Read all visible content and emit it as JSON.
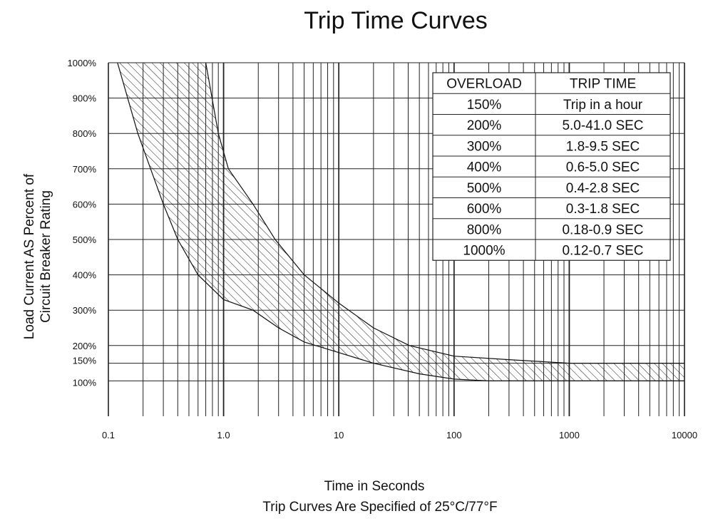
{
  "chart_data": {
    "type": "area",
    "title": "Trip Time Curves",
    "xlabel": "Time in Seconds",
    "subtitle_bottom": "Trip Curves Are Specified of 25°C/77°F",
    "ylabel": [
      "Load Current AS Percent of",
      "Circuit Breaker Rating"
    ],
    "x_scale": "log",
    "xlim": [
      0.1,
      10000
    ],
    "ylim": [
      0,
      1000
    ],
    "x_ticks": [
      {
        "value": 0.1,
        "label": "0.1"
      },
      {
        "value": 1,
        "label": "1.0"
      },
      {
        "value": 10,
        "label": "10"
      },
      {
        "value": 100,
        "label": "100"
      },
      {
        "value": 1000,
        "label": "1000"
      },
      {
        "value": 10000,
        "label": "10000"
      }
    ],
    "y_ticks": [
      {
        "value": 100,
        "label": "100%"
      },
      {
        "value": 150,
        "label": "150%"
      },
      {
        "value": 200,
        "label": "200%"
      },
      {
        "value": 300,
        "label": "300%"
      },
      {
        "value": 400,
        "label": "400%"
      },
      {
        "value": 500,
        "label": "500%"
      },
      {
        "value": 600,
        "label": "600%"
      },
      {
        "value": 700,
        "label": "700%"
      },
      {
        "value": 800,
        "label": "800%"
      },
      {
        "value": 900,
        "label": "900%"
      },
      {
        "value": 1000,
        "label": "1000%"
      }
    ],
    "grid": true,
    "series": [
      {
        "role": "min_trip_curve",
        "points": [
          [
            0.12,
            1000
          ],
          [
            0.18,
            800
          ],
          [
            0.3,
            600
          ],
          [
            0.4,
            500
          ],
          [
            0.6,
            400
          ],
          [
            1.0,
            330
          ],
          [
            1.8,
            300
          ],
          [
            3,
            250
          ],
          [
            5,
            210
          ],
          [
            10,
            180
          ],
          [
            20,
            150
          ],
          [
            50,
            120
          ],
          [
            100,
            105
          ],
          [
            200,
            100
          ],
          [
            10000,
            100
          ]
        ]
      },
      {
        "role": "max_trip_curve",
        "points": [
          [
            0.7,
            1000
          ],
          [
            0.9,
            800
          ],
          [
            1.1,
            700
          ],
          [
            1.8,
            600
          ],
          [
            2.8,
            500
          ],
          [
            5,
            400
          ],
          [
            10,
            320
          ],
          [
            20,
            250
          ],
          [
            41,
            200
          ],
          [
            100,
            170
          ],
          [
            300,
            160
          ],
          [
            1000,
            150
          ],
          [
            10000,
            150
          ]
        ]
      }
    ],
    "fill_pattern": "diagonal-hatch",
    "table": {
      "headers": [
        "OVERLOAD",
        "TRIP TIME"
      ],
      "rows": [
        [
          "150%",
          "Trip in a hour"
        ],
        [
          "200%",
          "5.0-41.0 SEC"
        ],
        [
          "300%",
          "1.8-9.5 SEC"
        ],
        [
          "400%",
          "0.6-5.0 SEC"
        ],
        [
          "500%",
          "0.4-2.8 SEC"
        ],
        [
          "600%",
          "0.3-1.8 SEC"
        ],
        [
          "800%",
          "0.18-0.9 SEC"
        ],
        [
          "1000%",
          "0.12-0.7 SEC"
        ]
      ]
    }
  }
}
